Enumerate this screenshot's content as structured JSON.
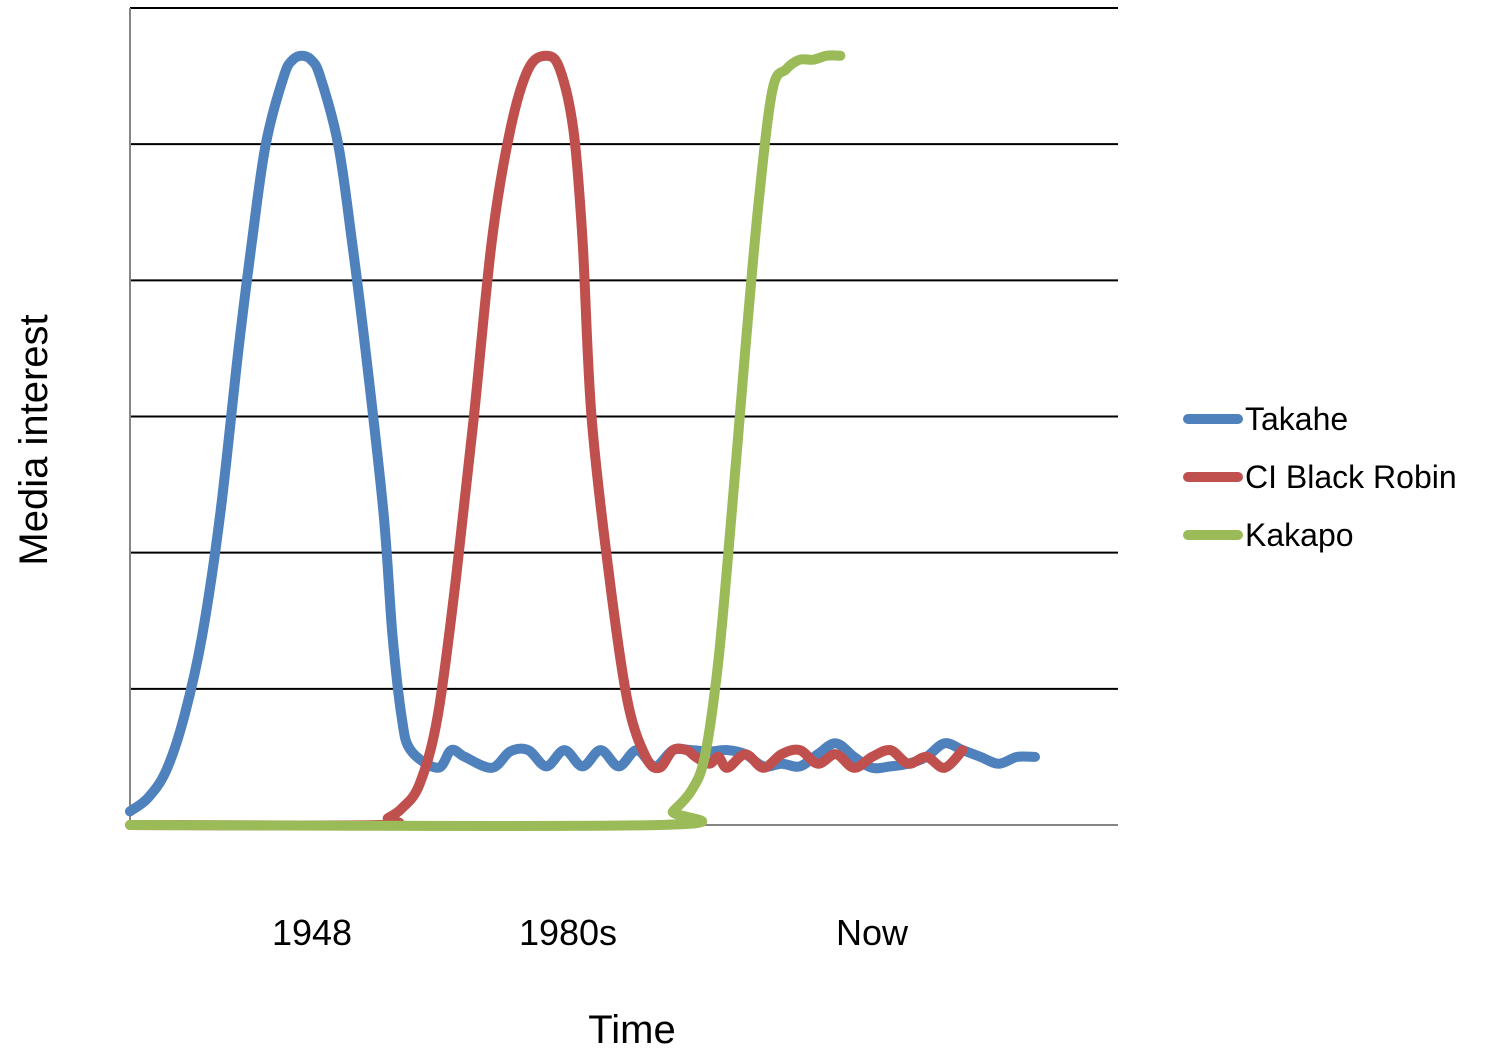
{
  "chart_data": {
    "type": "line",
    "title": "",
    "xlabel": "Time",
    "ylabel": "Media interest",
    "x_tick_labels": [
      "1948",
      "1980s",
      "Now"
    ],
    "grid": true,
    "legend_position": "right",
    "ylim": [
      0,
      6
    ],
    "xlim": [
      0,
      100
    ],
    "series": [
      {
        "name": "Takahe",
        "color": "#4F81BD",
        "x": [
          0,
          2,
          4,
          6,
          8,
          10,
          12,
          13.5,
          15,
          17,
          18,
          19,
          20,
          21,
          23,
          24.5,
          26,
          28,
          29,
          30,
          31,
          34,
          35.5,
          37,
          40,
          42,
          44,
          46,
          48,
          50,
          52,
          54,
          56,
          58,
          60,
          62,
          64,
          66,
          68,
          70,
          72,
          74,
          76,
          78,
          80,
          82,
          84,
          86,
          88,
          90,
          92,
          94,
          96,
          98,
          100
        ],
        "y": [
          0.1,
          0.2,
          0.4,
          0.8,
          1.4,
          2.3,
          3.5,
          4.3,
          5.0,
          5.5,
          5.62,
          5.65,
          5.62,
          5.5,
          5.0,
          4.3,
          3.5,
          2.3,
          1.4,
          0.8,
          0.55,
          0.42,
          0.55,
          0.5,
          0.42,
          0.54,
          0.55,
          0.43,
          0.55,
          0.43,
          0.55,
          0.43,
          0.55,
          0.43,
          0.55,
          0.55,
          0.54,
          0.55,
          0.52,
          0.43,
          0.45,
          0.43,
          0.52,
          0.6,
          0.5,
          0.42,
          0.43,
          0.45,
          0.5,
          0.6,
          0.55,
          0.5,
          0.45,
          0.5,
          0.5
        ]
      },
      {
        "name": "CI Black Robin",
        "color": "#C0504D",
        "x": [
          0,
          27.5,
          28.5,
          30,
          32,
          34,
          36,
          38,
          40,
          42,
          44,
          46,
          47.5,
          49,
          50,
          51,
          53,
          55,
          57,
          58.5,
          60,
          61.5,
          62.5,
          64,
          65,
          66,
          68,
          70,
          72,
          74,
          76,
          78,
          80,
          82,
          84,
          86,
          88,
          90,
          92
        ],
        "y": [
          0,
          0,
          0.05,
          0.12,
          0.3,
          0.8,
          1.8,
          3.0,
          4.3,
          5.1,
          5.55,
          5.65,
          5.55,
          5.1,
          4.3,
          3.0,
          1.8,
          0.9,
          0.5,
          0.42,
          0.55,
          0.55,
          0.5,
          0.45,
          0.5,
          0.42,
          0.52,
          0.42,
          0.52,
          0.55,
          0.45,
          0.52,
          0.42,
          0.5,
          0.55,
          0.45,
          0.5,
          0.42,
          0.55
        ]
      },
      {
        "name": "Kakapo",
        "color": "#9BBB59",
        "x": [
          0,
          58.5,
          60,
          62,
          63.5,
          65,
          66.5,
          68,
          69.5,
          71,
          72.5,
          74,
          75.5,
          77,
          78.5
        ],
        "y": [
          0,
          0,
          0.1,
          0.25,
          0.5,
          1.2,
          2.3,
          3.5,
          4.6,
          5.4,
          5.55,
          5.62,
          5.62,
          5.65,
          5.65
        ]
      }
    ]
  }
}
